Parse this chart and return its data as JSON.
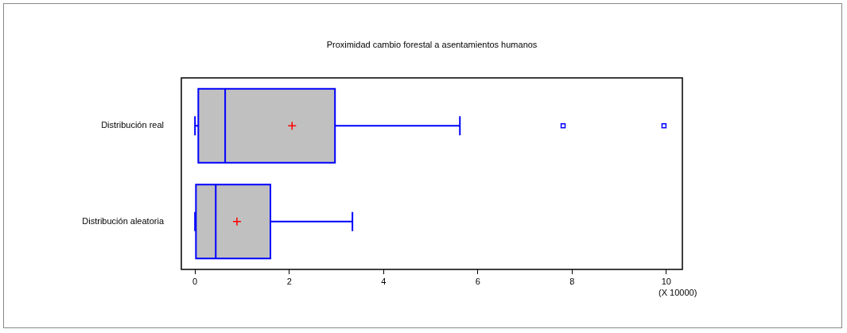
{
  "chart_data": {
    "type": "box",
    "orientation": "horizontal",
    "title": "Proximidad cambio forestal a asentamientos humanos",
    "xlabel": "(X 10000)",
    "categories": [
      "Distribución real",
      "Distribución aleatoria"
    ],
    "series": [
      {
        "color": "#c0c0c0",
        "boxes": [
          {
            "low": 0,
            "q1": 0.07,
            "median": 0.64,
            "q3": 2.97,
            "high": 5.62,
            "mean": 2.06,
            "outliers": [
              7.81,
              9.95
            ]
          },
          {
            "low": 0,
            "q1": 0.02,
            "median": 0.44,
            "q3": 1.6,
            "high": 3.34,
            "mean": 0.89
          }
        ]
      }
    ],
    "xlim": [
      -0.29,
      10.34
    ],
    "xticks": [
      0,
      2,
      4,
      6,
      8,
      10
    ],
    "grid": false,
    "legend": false
  }
}
